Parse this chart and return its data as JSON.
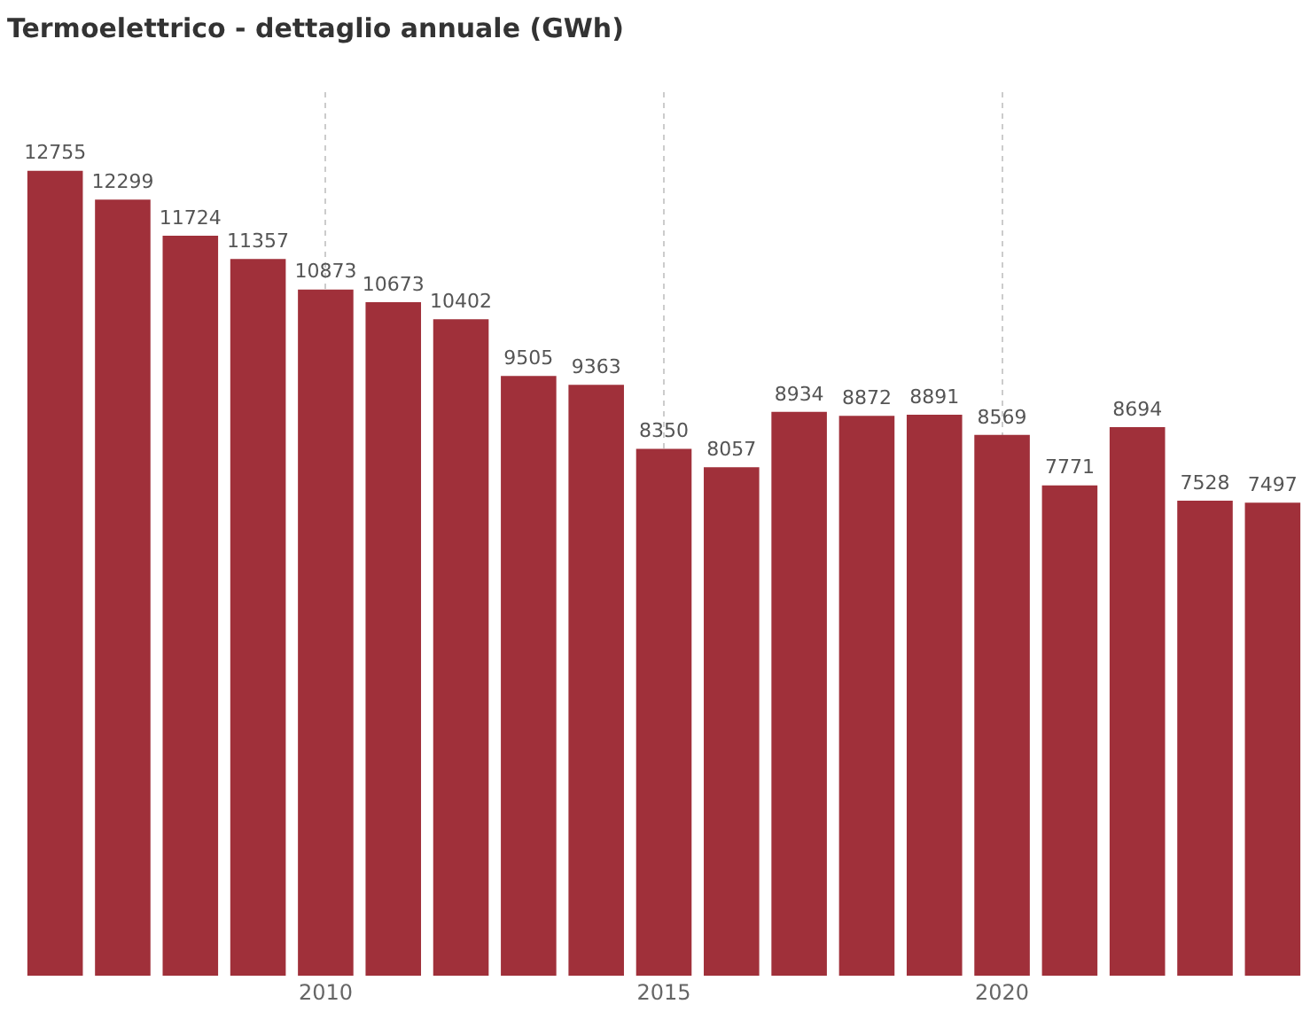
{
  "chart_data": {
    "type": "bar",
    "title": "Termoelettrico - dettaglio annuale (GWh)",
    "x": [
      2006,
      2007,
      2008,
      2009,
      2010,
      2011,
      2012,
      2013,
      2014,
      2015,
      2016,
      2017,
      2018,
      2019,
      2020,
      2021,
      2022,
      2023,
      2024
    ],
    "values": [
      12755,
      12299,
      11724,
      11357,
      10873,
      10673,
      10402,
      9505,
      9363,
      8350,
      8057,
      8934,
      8872,
      8891,
      8569,
      7771,
      8694,
      7528,
      7497
    ],
    "color": "#a0303a",
    "xlim": [
      2005.5,
      2024.5
    ],
    "xticks": [
      2010,
      2015,
      2020
    ],
    "grid": "x",
    "data_labels": true,
    "tick_labels": "x",
    "legend": false
  }
}
